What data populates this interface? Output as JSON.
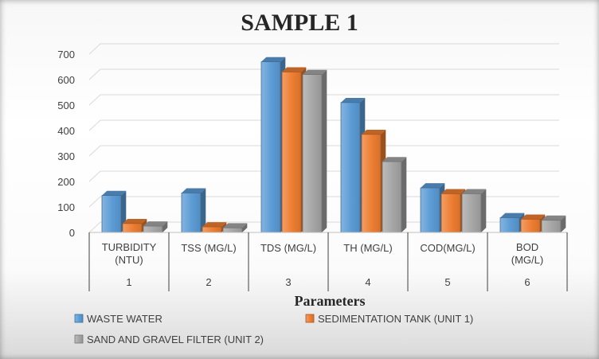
{
  "chart_data": {
    "type": "bar",
    "title": "SAMPLE 1",
    "xlabel": "Parameters",
    "ylabel": "",
    "ylim": [
      0,
      700
    ],
    "yticks": [
      0,
      100,
      200,
      300,
      400,
      500,
      600,
      700
    ],
    "grid": true,
    "legend_position": "bottom",
    "categories": [
      {
        "label": [
          "TURBIDITY",
          "(NTU)"
        ],
        "number": "1"
      },
      {
        "label": [
          "TSS (MG/L)"
        ],
        "number": "2"
      },
      {
        "label": [
          "TDS (MG/L)"
        ],
        "number": "3"
      },
      {
        "label": [
          "TH (MG/L)"
        ],
        "number": "4"
      },
      {
        "label": [
          "COD(MG/L)"
        ],
        "number": "5"
      },
      {
        "label": [
          "BOD",
          "(MG/L)"
        ],
        "number": "6"
      }
    ],
    "series": [
      {
        "name": "WASTE WATER",
        "color": "#5b9bd5",
        "values": [
          145,
          155,
          670,
          510,
          175,
          58
        ]
      },
      {
        "name": "SEDIMENTATION TANK (UNIT 1)",
        "color": "#ed7d31",
        "values": [
          35,
          22,
          630,
          385,
          152,
          52
        ]
      },
      {
        "name": "SAND AND GRAVEL FILTER (UNIT 2)",
        "color": "#a5a5a5",
        "values": [
          25,
          18,
          620,
          278,
          152,
          48
        ]
      }
    ]
  }
}
